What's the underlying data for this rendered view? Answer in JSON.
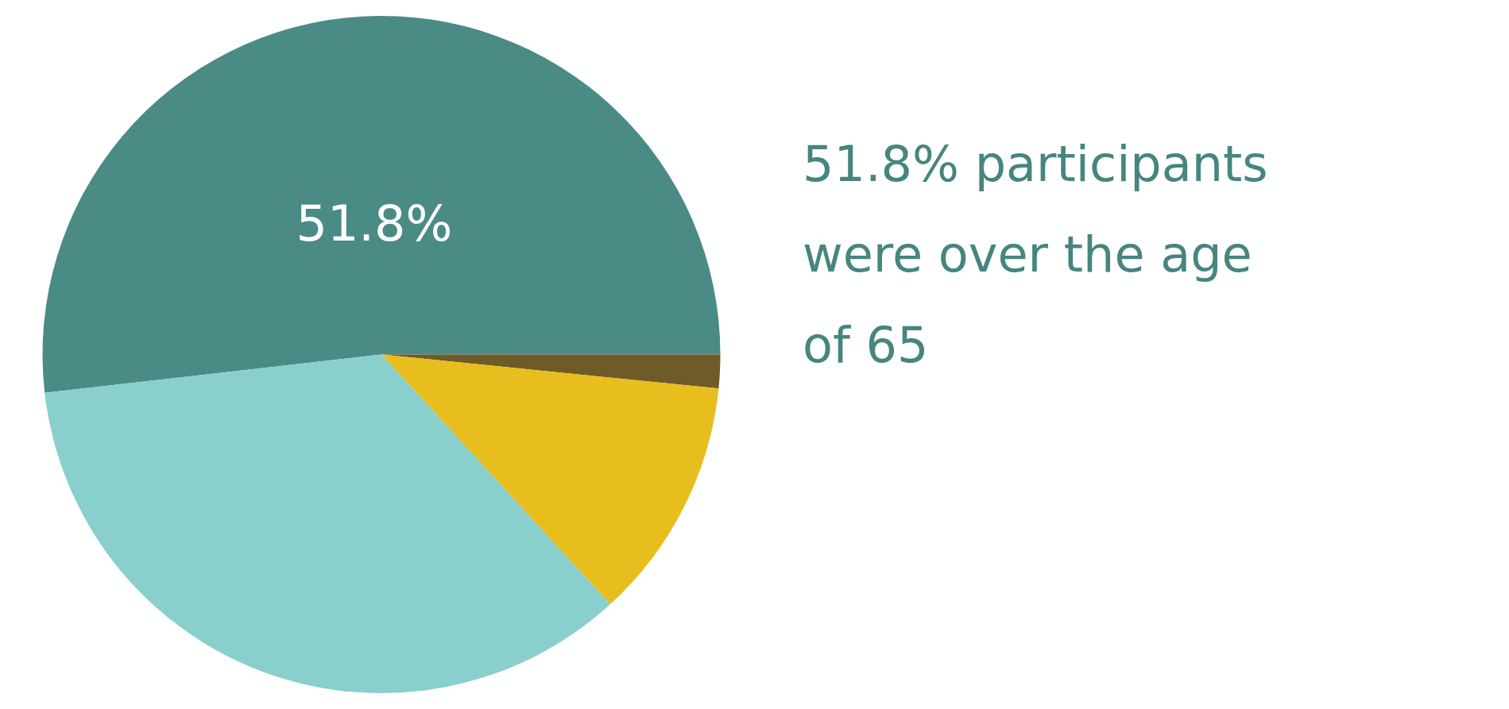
{
  "chart_data": {
    "type": "pie",
    "categories": [
      null,
      null,
      null,
      null
    ],
    "values": [
      51.8,
      1.6,
      11.6,
      35.0
    ],
    "colors": [
      "#4a8b86",
      "#6f5b27",
      "#e8be1e",
      "#89cfcc"
    ],
    "value_labels": [
      "51.8%",
      null,
      null,
      null
    ],
    "annotations": [
      "51.8% participants were over the age of 65"
    ],
    "legend": false
  }
}
